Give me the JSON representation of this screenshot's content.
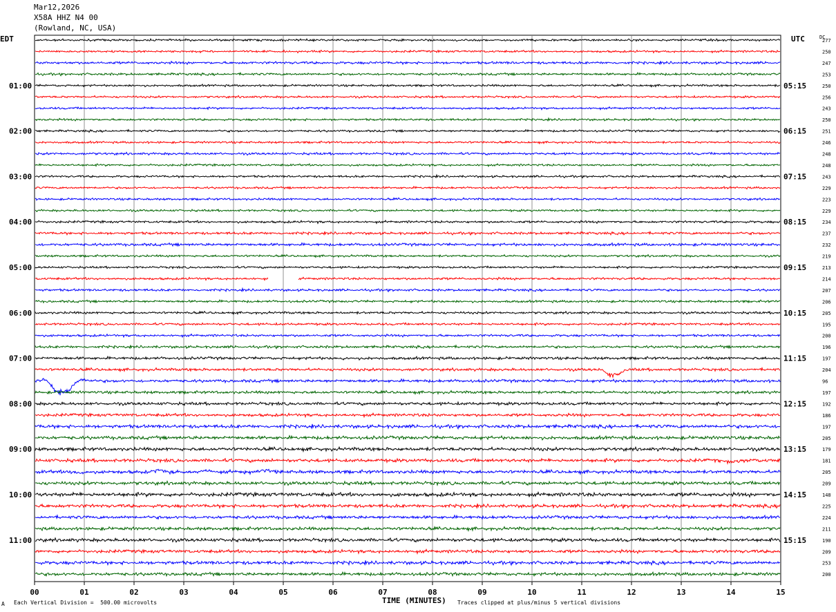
{
  "header": {
    "date": "Mar12,2026",
    "station": "X58A HHZ N4 00",
    "location": "(Rowland, NC, USA)"
  },
  "left_tz": "EDT",
  "right_tz": "UTC",
  "dc_label": "DC",
  "footer": {
    "scale_note": "Each Vertical Division =  500.00 microvolts",
    "clip_note": "Traces clipped at plus/minus 5 vertical divisions",
    "corner_mark": "A"
  },
  "colors": [
    "#000000",
    "#ff0000",
    "#0000ff",
    "#006400"
  ],
  "chart_data": {
    "type": "line",
    "title": "",
    "xlabel": "TIME (MINUTES)",
    "xlim": [
      0,
      15
    ],
    "x_ticks": [
      "00",
      "01",
      "02",
      "03",
      "04",
      "05",
      "06",
      "07",
      "08",
      "09",
      "10",
      "11",
      "12",
      "13",
      "14",
      "15"
    ],
    "left_hour_labels": [
      "01:00",
      "02:00",
      "03:00",
      "04:00",
      "05:00",
      "06:00",
      "07:00",
      "08:00",
      "09:00",
      "10:00",
      "11:00"
    ],
    "right_hour_labels": [
      "05:15",
      "06:15",
      "07:15",
      "08:15",
      "09:15",
      "10:15",
      "11:15",
      "12:15",
      "13:15",
      "14:15",
      "15:15"
    ],
    "trace_count": 48,
    "dc_offsets": [
      277,
      250,
      247,
      253,
      250,
      256,
      243,
      250,
      251,
      246,
      248,
      248,
      243,
      229,
      223,
      229,
      234,
      237,
      232,
      219,
      213,
      214,
      207,
      206,
      205,
      195,
      200,
      196,
      197,
      204,
      96,
      197,
      192,
      186,
      197,
      205,
      179,
      181,
      205,
      209,
      148,
      225,
      224,
      211,
      190,
      209,
      253,
      200
    ],
    "amplitude": [
      1.0,
      1.0,
      1.2,
      1.1,
      1.0,
      1.0,
      1.0,
      1.0,
      1.0,
      1.0,
      1.1,
      1.0,
      1.0,
      1.0,
      1.0,
      1.0,
      1.1,
      1.2,
      1.3,
      1.0,
      1.0,
      1.1,
      1.1,
      1.1,
      1.1,
      1.1,
      1.1,
      1.2,
      1.3,
      1.3,
      1.4,
      1.3,
      1.4,
      1.4,
      1.6,
      1.6,
      1.6,
      1.6,
      1.6,
      1.6,
      1.8,
      1.6,
      1.5,
      1.5,
      1.6,
      1.5,
      1.6,
      1.5
    ],
    "gaps": [
      {
        "trace": 21,
        "from_min": 4.7,
        "to_min": 5.3
      }
    ],
    "events": [
      {
        "trace": 30,
        "start_min": 0.1,
        "dur_min": 1.0,
        "peak_divs": 5
      },
      {
        "trace": 29,
        "start_min": 11.4,
        "dur_min": 0.6,
        "peak_divs": 2.6
      },
      {
        "trace": 29,
        "start_min": 14.35,
        "dur_min": 0.15,
        "peak_divs": 0.5
      },
      {
        "trace": 38,
        "start_min": 0.6,
        "dur_min": 0.5,
        "peak_divs": 0.6
      },
      {
        "trace": 38,
        "start_min": 2.3,
        "dur_min": 0.6,
        "peak_divs": 0.8
      },
      {
        "trace": 38,
        "start_min": 3.3,
        "dur_min": 0.4,
        "peak_divs": 0.6
      },
      {
        "trace": 38,
        "start_min": 4.2,
        "dur_min": 0.7,
        "peak_divs": 0.7
      },
      {
        "trace": 37,
        "start_min": 13.6,
        "dur_min": 1.0,
        "peak_divs": 0.5
      },
      {
        "trace": 28,
        "start_min": 6.15,
        "dur_min": 0.1,
        "peak_divs": 0.5
      }
    ]
  }
}
